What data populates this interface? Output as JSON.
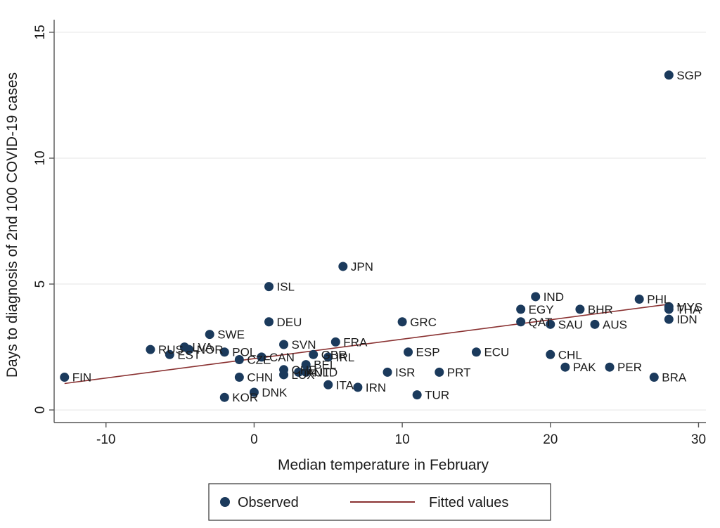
{
  "chart_data": {
    "type": "scatter",
    "xlabel": "Median temperature in February",
    "ylabel": "Days to diagnosis of 2nd 100 COVID-19 cases",
    "xlim": [
      -13.5,
      30.5
    ],
    "ylim": [
      -0.5,
      15.5
    ],
    "xticks": [
      -10,
      0,
      10,
      20,
      30
    ],
    "yticks": [
      0,
      5,
      10,
      15
    ],
    "grid": "horizontal",
    "legend_position": "bottom",
    "colors": {
      "observed": "#1b3a5c",
      "fitted": "#8a3232",
      "grid": "#eaeaea",
      "axis": "#555555"
    },
    "series": [
      {
        "name": "Observed",
        "marker": "circle",
        "points": [
          {
            "label": "FIN",
            "x": -12.8,
            "y": 1.3
          },
          {
            "label": "RUS",
            "x": -7.0,
            "y": 2.4
          },
          {
            "label": "EST",
            "x": -5.7,
            "y": 2.2
          },
          {
            "label": "LVA",
            "x": -4.7,
            "y": 2.5
          },
          {
            "label": "NOR",
            "x": -4.4,
            "y": 2.4
          },
          {
            "label": "SWE",
            "x": -3.0,
            "y": 3.0
          },
          {
            "label": "POL",
            "x": -2.0,
            "y": 2.3
          },
          {
            "label": "KOR",
            "x": -2.0,
            "y": 0.5
          },
          {
            "label": "CZE",
            "x": -1.0,
            "y": 2.0
          },
          {
            "label": "CHN",
            "x": -1.0,
            "y": 1.3
          },
          {
            "label": "DNK",
            "x": 0.0,
            "y": 0.7
          },
          {
            "label": "CAN",
            "x": 0.5,
            "y": 2.1
          },
          {
            "label": "ISL",
            "x": 1.0,
            "y": 4.9
          },
          {
            "label": "DEU",
            "x": 1.0,
            "y": 3.5
          },
          {
            "label": "SVN",
            "x": 2.0,
            "y": 2.6
          },
          {
            "label": "CHE",
            "x": 2.0,
            "y": 1.6
          },
          {
            "label": "LUX",
            "x": 2.0,
            "y": 1.4
          },
          {
            "label": "AUT",
            "x": 3.0,
            "y": 1.5
          },
          {
            "label": "NLD",
            "x": 3.5,
            "y": 1.5
          },
          {
            "label": "BEL",
            "x": 3.5,
            "y": 1.8
          },
          {
            "label": "GBR",
            "x": 4.0,
            "y": 2.2
          },
          {
            "label": "IRL",
            "x": 5.0,
            "y": 2.1
          },
          {
            "label": "FRA",
            "x": 5.5,
            "y": 2.7
          },
          {
            "label": "ITA",
            "x": 5.0,
            "y": 1.0
          },
          {
            "label": "JPN",
            "x": 6.0,
            "y": 5.7
          },
          {
            "label": "IRN",
            "x": 7.0,
            "y": 0.9
          },
          {
            "label": "ISR",
            "x": 9.0,
            "y": 1.5
          },
          {
            "label": "GRC",
            "x": 10.0,
            "y": 3.5
          },
          {
            "label": "ESP",
            "x": 10.4,
            "y": 2.3
          },
          {
            "label": "TUR",
            "x": 11.0,
            "y": 0.6
          },
          {
            "label": "PRT",
            "x": 12.5,
            "y": 1.5
          },
          {
            "label": "ECU",
            "x": 15.0,
            "y": 2.3
          },
          {
            "label": "EGY",
            "x": 18.0,
            "y": 4.0
          },
          {
            "label": "QAT",
            "x": 18.0,
            "y": 3.5
          },
          {
            "label": "IND",
            "x": 19.0,
            "y": 4.5
          },
          {
            "label": "CHL",
            "x": 20.0,
            "y": 2.2
          },
          {
            "label": "SAU",
            "x": 20.0,
            "y": 3.4
          },
          {
            "label": "PAK",
            "x": 21.0,
            "y": 1.7
          },
          {
            "label": "BHR",
            "x": 22.0,
            "y": 4.0
          },
          {
            "label": "AUS",
            "x": 23.0,
            "y": 3.4
          },
          {
            "label": "PER",
            "x": 24.0,
            "y": 1.7
          },
          {
            "label": "PHL",
            "x": 26.0,
            "y": 4.4
          },
          {
            "label": "BRA",
            "x": 27.0,
            "y": 1.3
          },
          {
            "label": "MYS",
            "x": 28.0,
            "y": 4.1
          },
          {
            "label": "THA",
            "x": 28.0,
            "y": 4.0
          },
          {
            "label": "IDN",
            "x": 28.0,
            "y": 3.6
          },
          {
            "label": "SGP",
            "x": 28.0,
            "y": 13.3
          }
        ]
      },
      {
        "name": "Fitted values",
        "type": "line",
        "x": [
          -12.8,
          28.0
        ],
        "y": [
          1.05,
          4.2
        ]
      }
    ]
  }
}
